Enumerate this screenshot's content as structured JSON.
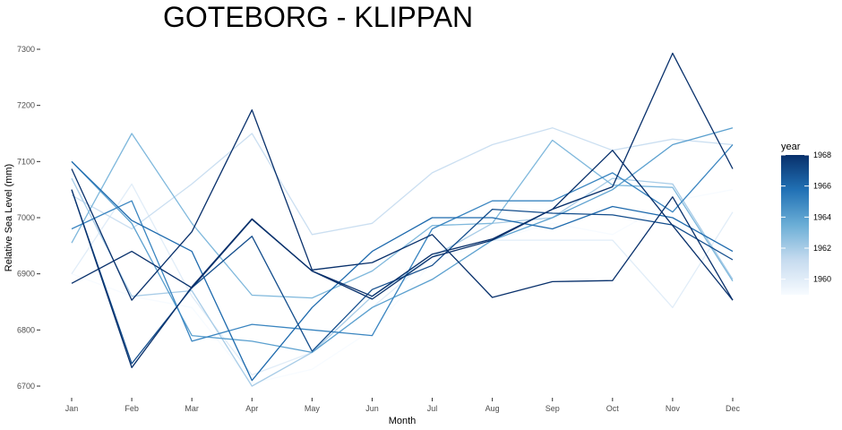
{
  "chart_data": {
    "type": "line",
    "title": "GOTEBORG - KLIPPAN",
    "xlabel": "Month",
    "ylabel": "Relative Sea Level (mm)",
    "categories": [
      "Jan",
      "Feb",
      "Mar",
      "Apr",
      "May",
      "Jun",
      "Jul",
      "Aug",
      "Sep",
      "Oct",
      "Nov",
      "Dec"
    ],
    "ylim": [
      6690,
      7310
    ],
    "yticks": [
      6700,
      6800,
      6900,
      7000,
      7100,
      7200,
      7300
    ],
    "grid": false,
    "legend": {
      "title": "year",
      "placement": "right",
      "labels": [
        "1968",
        "1966",
        "1964",
        "1962",
        "1960"
      ],
      "label_values": [
        1968,
        1966,
        1964,
        1962,
        1960
      ],
      "range": [
        1959,
        1968
      ],
      "colors": [
        "#f7fbff",
        "#08306b"
      ]
    },
    "series": [
      {
        "year": 1959,
        "values": [
          6900,
          6860,
          6840,
          6705,
          6730,
          6800,
          6920,
          6960,
          6990,
          6970,
          7030,
          7050
        ]
      },
      {
        "year": 1960,
        "values": [
          6900,
          7060,
          6860,
          6720,
          6760,
          6840,
          6930,
          6960,
          6960,
          6960,
          6840,
          7010
        ]
      },
      {
        "year": 1961,
        "values": [
          7040,
          6980,
          7060,
          7150,
          6970,
          6990,
          7080,
          7130,
          7160,
          7120,
          7140,
          7130
        ]
      },
      {
        "year": 1962,
        "values": [
          7070,
          6860,
          6870,
          6700,
          6760,
          6860,
          6930,
          6990,
          7000,
          7070,
          7060,
          6890
        ]
      },
      {
        "year": 1963,
        "values": [
          6955,
          7150,
          6990,
          6862,
          6857,
          6905,
          6986,
          6990,
          7138,
          7058,
          7054,
          6887
        ]
      },
      {
        "year": 1964,
        "values": [
          7100,
          6990,
          6790,
          6780,
          6760,
          6840,
          6890,
          6960,
          7000,
          7050,
          7130,
          7160
        ]
      },
      {
        "year": 1965,
        "values": [
          6980,
          7030,
          6780,
          6810,
          6800,
          6790,
          6980,
          7030,
          7030,
          7080,
          7010,
          7130
        ]
      },
      {
        "year": 1966,
        "values": [
          7100,
          6995,
          6940,
          6710,
          6840,
          6940,
          7000,
          7000,
          6980,
          7020,
          7000,
          6940
        ]
      },
      {
        "year": 1967,
        "values": [
          7050,
          6740,
          6875,
          6967,
          6762,
          6872,
          6915,
          7015,
          7008,
          7005,
          6987,
          6925
        ]
      },
      {
        "year": 1968,
        "values": [
          6883,
          6940,
          6875,
          6997,
          6905,
          6855,
          6930,
          6960,
          7015,
          7120,
          6986,
          6853
        ]
      },
      {
        "year": 1968,
        "values": [
          7087,
          6853,
          6975,
          7192,
          6907,
          6920,
          6970,
          6858,
          6886,
          6888,
          7037,
          6853
        ]
      },
      {
        "year": 1968,
        "values": [
          7050,
          6733,
          6877,
          6998,
          6905,
          6860,
          6935,
          6962,
          7015,
          7055,
          7293,
          7087
        ]
      }
    ]
  }
}
